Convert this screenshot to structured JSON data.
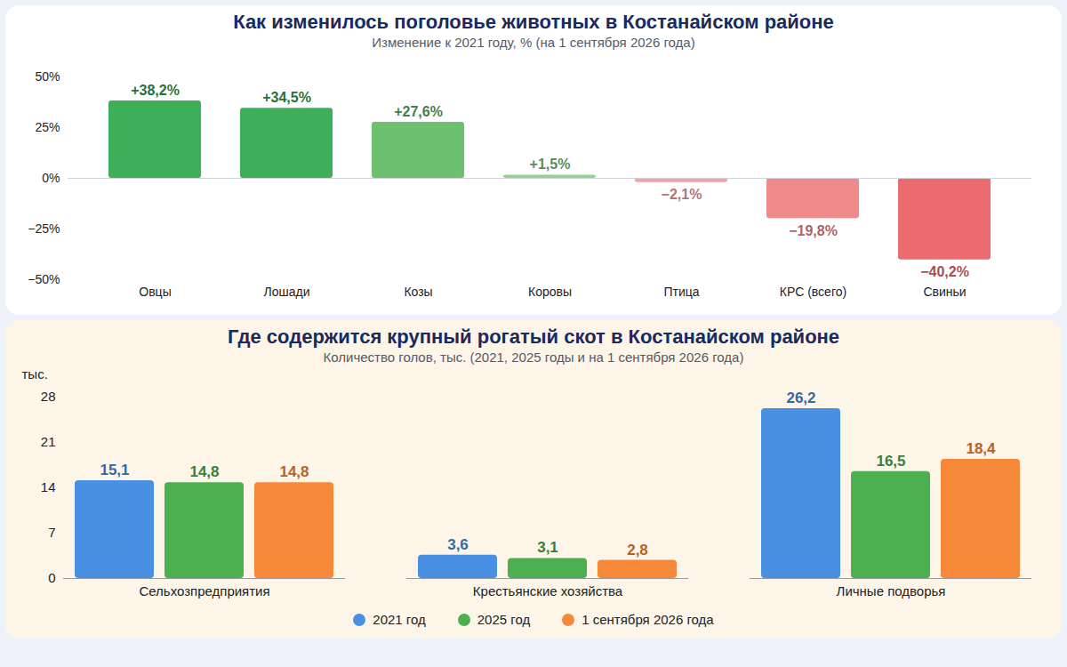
{
  "chart_data": [
    {
      "type": "bar",
      "title": "Как изменилось поголовье животных в Костанайском районе",
      "subtitle": "Изменение к 2021 году, % (на 1 сентября 2026 года)",
      "categories": [
        "Овцы",
        "Лошади",
        "Козы",
        "Коровы",
        "Птица",
        "КРС (всего)",
        "Свиньи"
      ],
      "values": [
        38.2,
        34.5,
        27.6,
        1.5,
        -2.1,
        -19.8,
        -40.2
      ],
      "value_labels": [
        "+38,2%",
        "+34,5%",
        "+27,6%",
        "+1,5%",
        "−2,1%",
        "−19,8%",
        "−40,2%"
      ],
      "colors": [
        "#3fae5a",
        "#3fae5a",
        "#6cc070",
        "#8fd48a",
        "#f4a3a3",
        "#f08a8a",
        "#ec6b70"
      ],
      "ylim": [
        -50,
        50
      ],
      "yticks": [
        {
          "value": -50,
          "label": "−50%"
        },
        {
          "value": -25,
          "label": "−25%"
        },
        {
          "value": 0,
          "label": "0%"
        },
        {
          "value": 25,
          "label": "25%"
        },
        {
          "value": 50,
          "label": "50%"
        }
      ],
      "grid": false,
      "data_labels": true
    },
    {
      "type": "bar",
      "title": "Где содержится крупный рогатый скот в Костанайском районе",
      "subtitle": "Количество голов, тыс. (2021, 2025 годы и на 1 сентября 2026 года)",
      "ylabel": "тыс.",
      "categories": [
        "Сельхозпредприятия",
        "Крестьянские хозяйства",
        "Личные подворья"
      ],
      "series": [
        {
          "name": "2021 год",
          "color": "#4a90e2",
          "values": [
            15.1,
            3.6,
            26.2
          ],
          "value_labels": [
            "15,1",
            "3,6",
            "26,2"
          ]
        },
        {
          "name": "2025 год",
          "color": "#4caf50",
          "values": [
            14.8,
            3.1,
            16.5
          ],
          "value_labels": [
            "14,8",
            "3,1",
            "16,5"
          ]
        },
        {
          "name": "1 сентября 2026 года",
          "color": "#f7883a",
          "values": [
            14.8,
            2.8,
            18.4
          ],
          "value_labels": [
            "14,8",
            "2,8",
            "18,4"
          ]
        }
      ],
      "ylim": [
        0,
        28
      ],
      "yticks": [
        0,
        7,
        14,
        21,
        28
      ],
      "grid": false,
      "data_labels": true,
      "legend": "bottom"
    }
  ]
}
